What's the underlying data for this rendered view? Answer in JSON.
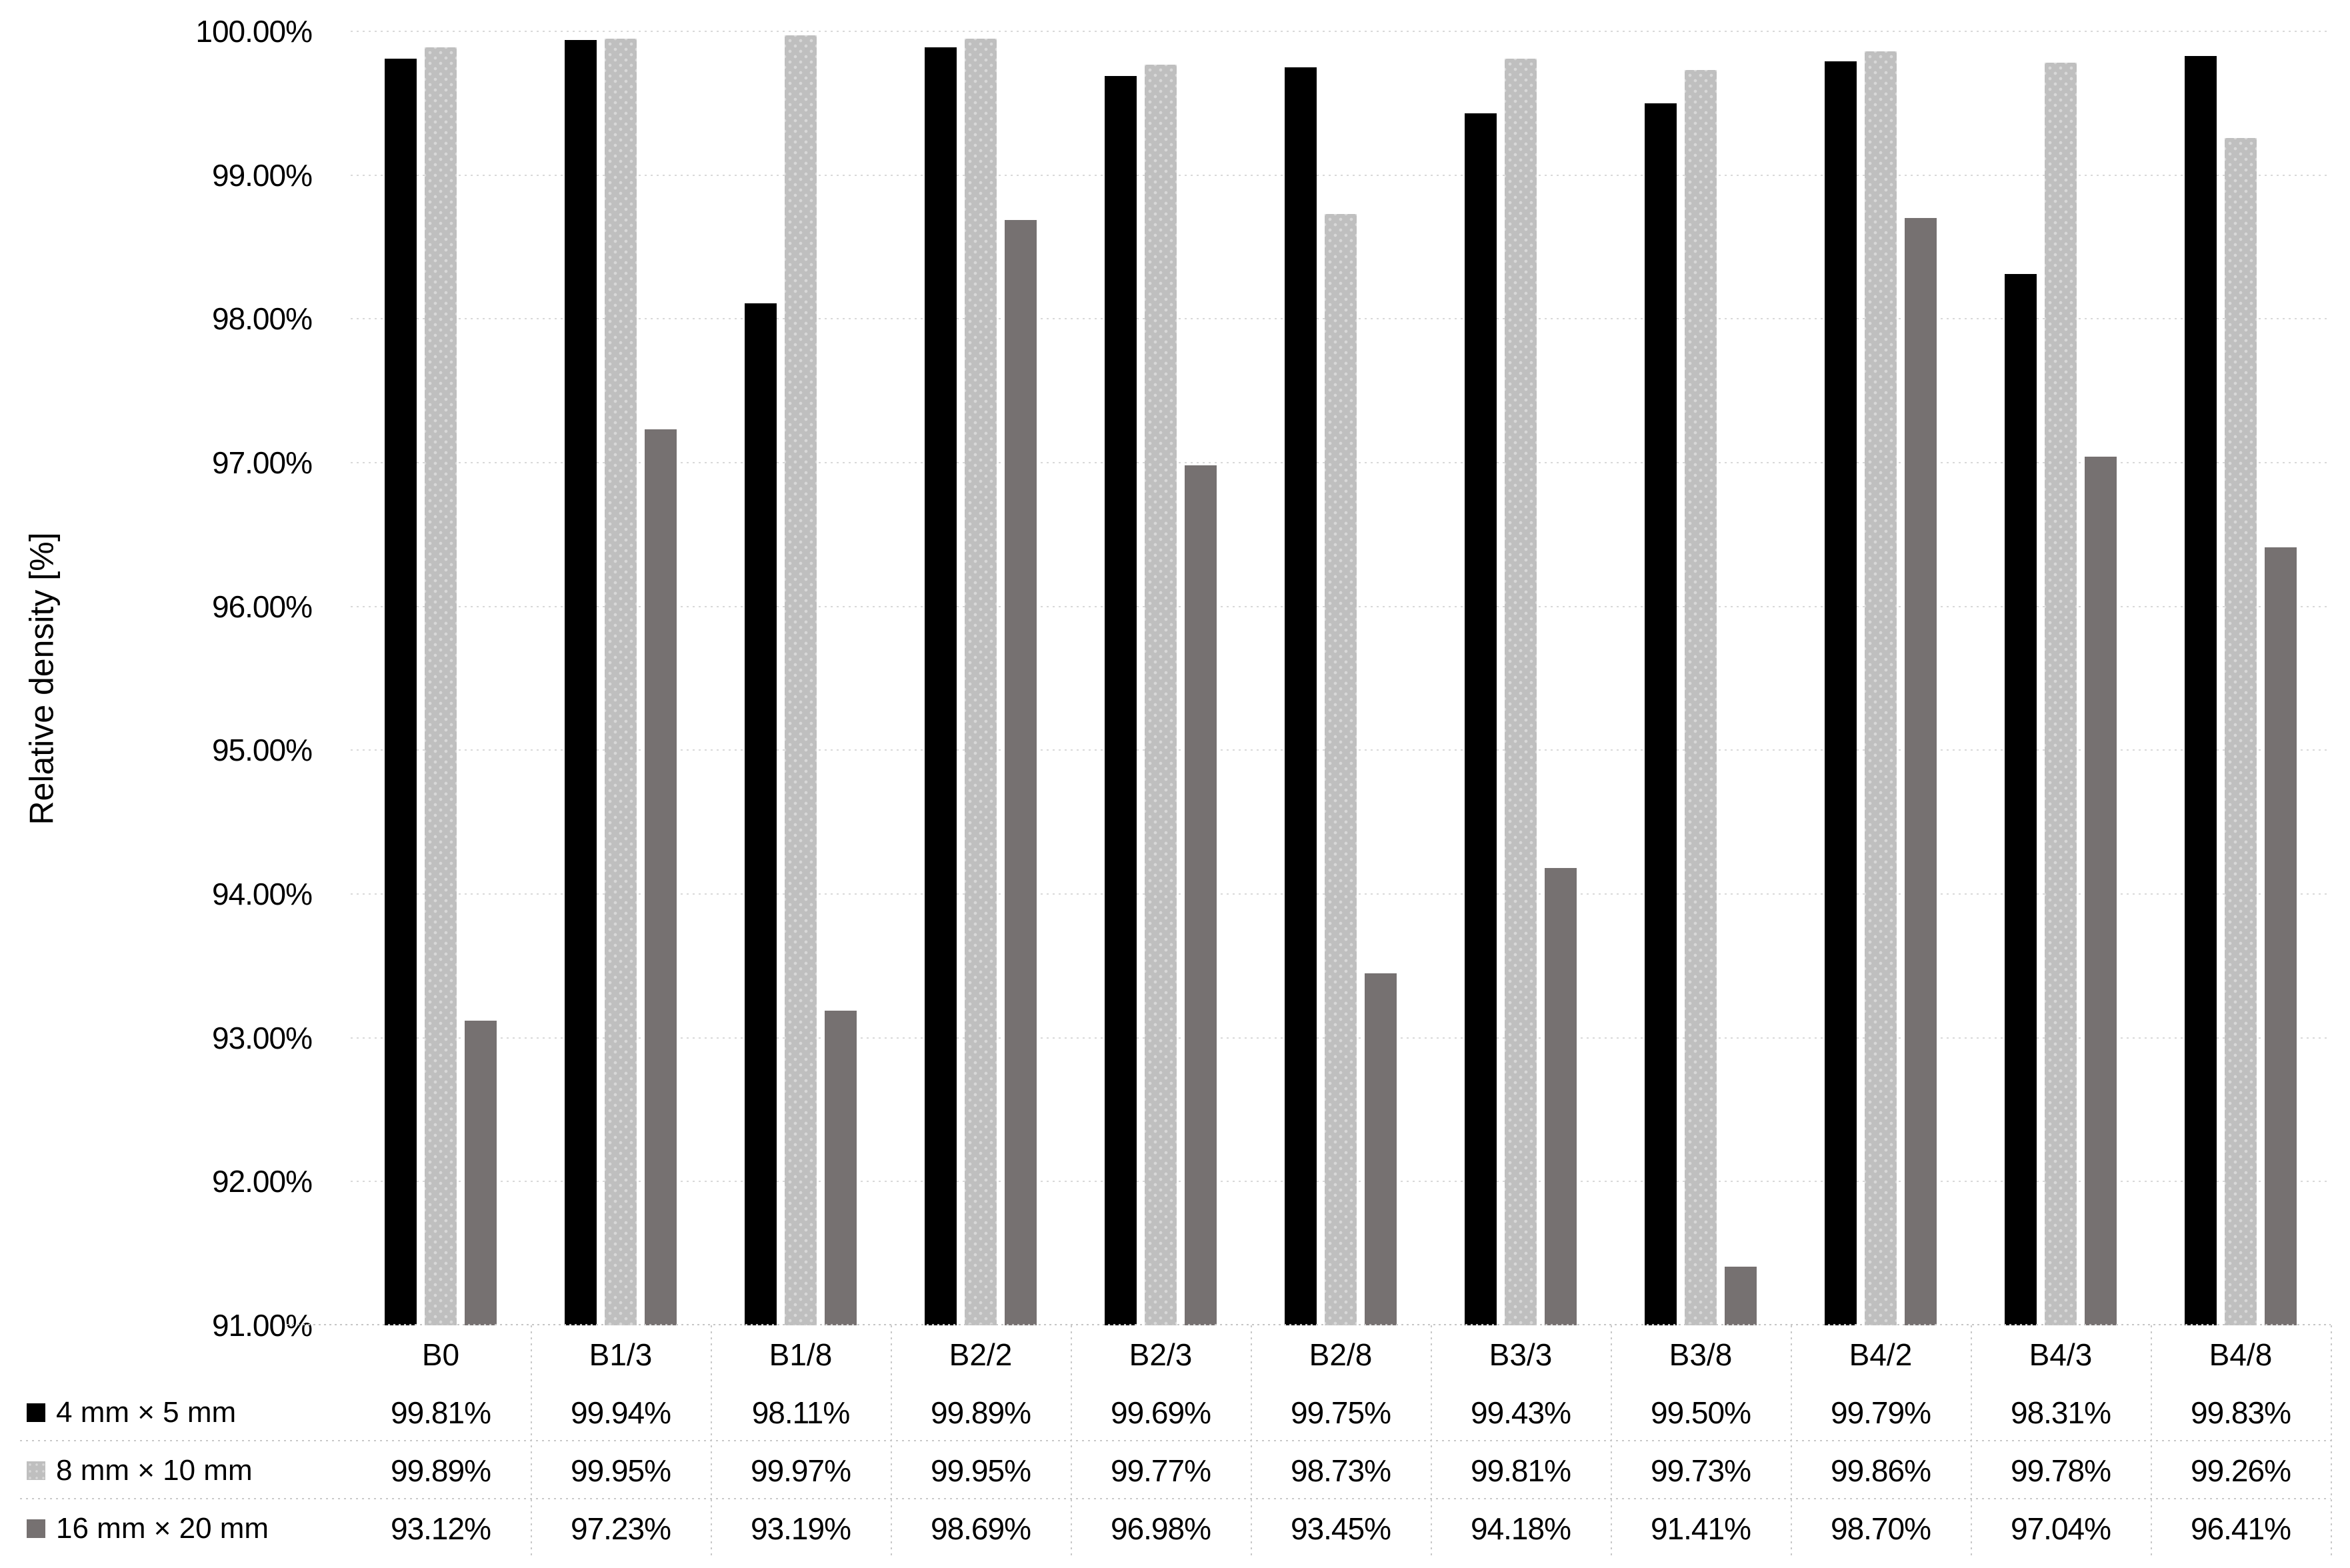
{
  "chart_data": {
    "type": "bar",
    "title": "",
    "xlabel": "",
    "ylabel": "Relative density [%]",
    "categories": [
      "B0",
      "B1/3",
      "B1/8",
      "B2/2",
      "B2/3",
      "B2/8",
      "B3/3",
      "B3/8",
      "B4/2",
      "B4/3",
      "B4/8"
    ],
    "series": [
      {
        "name": "4 mm × 5 mm",
        "color": "#000000",
        "pattern": "solid",
        "values": [
          99.81,
          99.94,
          98.11,
          99.89,
          99.69,
          99.75,
          99.43,
          99.5,
          99.79,
          98.31,
          99.83
        ]
      },
      {
        "name": "8 mm × 10 mm",
        "color": "#bfbfbf",
        "pattern": "dots",
        "values": [
          99.89,
          99.95,
          99.97,
          99.95,
          99.77,
          98.73,
          99.81,
          99.73,
          99.86,
          99.78,
          99.26
        ]
      },
      {
        "name": "16 mm × 20 mm",
        "color": "#767171",
        "pattern": "solid",
        "values": [
          93.12,
          97.23,
          93.19,
          98.69,
          96.98,
          93.45,
          94.18,
          91.41,
          98.7,
          97.04,
          96.41
        ]
      }
    ],
    "ylim": [
      91,
      100
    ],
    "ytick_step": 1,
    "yticks": [
      "100.00%",
      "99.00%",
      "98.00%",
      "97.00%",
      "96.00%",
      "95.00%",
      "94.00%",
      "93.00%",
      "92.00%",
      "91.00%"
    ],
    "value_format": "percent_2dp",
    "grid": "horizontal_dotted",
    "legend_position": "table_left",
    "gridline_color": "#d9d9d9",
    "table_line_color": "#c9c9c9"
  }
}
